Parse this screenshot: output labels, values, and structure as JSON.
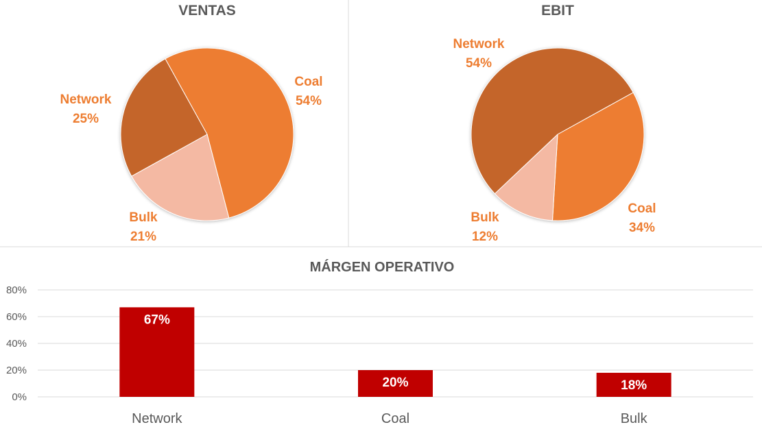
{
  "colors": {
    "network": "#C4652A",
    "coal": "#ED7D31",
    "bulk": "#F4B9A3",
    "label": "#ED7D31",
    "bar": "#C00000",
    "title": "#595959",
    "grid": "#D9D9D9"
  },
  "chart_data": [
    {
      "type": "pie",
      "title": "VENTAS",
      "slices": [
        {
          "name": "Coal",
          "value": 54,
          "label": "54%"
        },
        {
          "name": "Bulk",
          "value": 21,
          "label": "21%"
        },
        {
          "name": "Network",
          "value": 25,
          "label": "25%"
        }
      ]
    },
    {
      "type": "pie",
      "title": "EBIT",
      "slices": [
        {
          "name": "Coal",
          "value": 34,
          "label": "34%"
        },
        {
          "name": "Bulk",
          "value": 12,
          "label": "12%"
        },
        {
          "name": "Network",
          "value": 54,
          "label": "54%"
        }
      ]
    },
    {
      "type": "bar",
      "title": "MÁRGEN OPERATIVO",
      "categories": [
        "Network",
        "Coal",
        "Bulk"
      ],
      "values": [
        67,
        20,
        18
      ],
      "data_labels": [
        "67%",
        "20%",
        "18%"
      ],
      "yticks": [
        "0%",
        "20%",
        "40%",
        "60%",
        "80%"
      ],
      "ylim": [
        0,
        80
      ],
      "grid": true
    }
  ]
}
